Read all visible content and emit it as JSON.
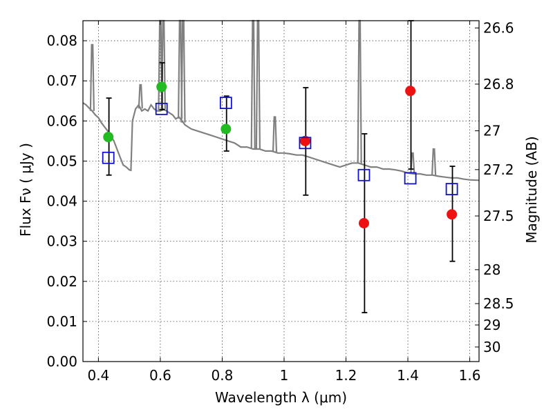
{
  "chart_data": {
    "type": "scatter",
    "xlabel": "Wavelength  λ (μm)",
    "ylabel": "Flux  Fν  ( μJy )",
    "ylabel_right": "Magnitude (AB)",
    "xlim": [
      0.35,
      1.63
    ],
    "ylim": [
      0.0,
      0.085
    ],
    "x_ticks": [
      0.4,
      0.6,
      0.8,
      1.0,
      1.2,
      1.4,
      1.6
    ],
    "x_tick_labels": [
      "0.4",
      "0.6",
      "0.8",
      "1",
      "1.2",
      "1.4",
      "1.6"
    ],
    "y_ticks": [
      0.0,
      0.01,
      0.02,
      0.03,
      0.04,
      0.05,
      0.06,
      0.07,
      0.08
    ],
    "y_tick_labels": [
      "0.00",
      "0.01",
      "0.02",
      "0.03",
      "0.04",
      "0.05",
      "0.06",
      "0.07",
      "0.08"
    ],
    "right_ticks": [
      {
        "label": "26.6",
        "mag": 26.6
      },
      {
        "label": "26.8",
        "mag": 26.8
      },
      {
        "label": "27",
        "mag": 27.0
      },
      {
        "label": "27.2",
        "mag": 27.2
      },
      {
        "label": "27.5",
        "mag": 27.5
      },
      {
        "label": "28",
        "mag": 28.0
      },
      {
        "label": "28.5",
        "mag": 28.5
      },
      {
        "label": "29",
        "mag": 29.0
      },
      {
        "label": "30",
        "mag": 30.0
      }
    ],
    "grid": true,
    "series": [
      {
        "kind": "line",
        "color": "#808080",
        "points": [
          [
            0.35,
            0.0645
          ],
          [
            0.36,
            0.064
          ],
          [
            0.37,
            0.0632
          ],
          [
            0.38,
            0.0625
          ],
          [
            0.39,
            0.0615
          ],
          [
            0.4,
            0.0608
          ],
          [
            0.41,
            0.0595
          ],
          [
            0.42,
            0.0585
          ],
          [
            0.43,
            0.0575
          ],
          [
            0.44,
            0.0562
          ],
          [
            0.45,
            0.055
          ],
          [
            0.46,
            0.053
          ],
          [
            0.47,
            0.051
          ],
          [
            0.48,
            0.049
          ],
          [
            0.49,
            0.0485
          ],
          [
            0.5,
            0.0478
          ],
          [
            0.505,
            0.0477
          ],
          [
            0.51,
            0.06
          ],
          [
            0.52,
            0.063
          ],
          [
            0.53,
            0.064
          ],
          [
            0.54,
            0.0625
          ],
          [
            0.55,
            0.063
          ],
          [
            0.56,
            0.0625
          ],
          [
            0.57,
            0.064
          ],
          [
            0.58,
            0.063
          ],
          [
            0.59,
            0.0625
          ],
          [
            0.6,
            0.0625
          ],
          [
            0.61,
            0.063
          ],
          [
            0.62,
            0.0625
          ],
          [
            0.63,
            0.062
          ],
          [
            0.64,
            0.0615
          ],
          [
            0.65,
            0.0605
          ],
          [
            0.66,
            0.061
          ],
          [
            0.67,
            0.06
          ],
          [
            0.68,
            0.059
          ],
          [
            0.69,
            0.0585
          ],
          [
            0.7,
            0.058
          ],
          [
            0.72,
            0.0575
          ],
          [
            0.74,
            0.057
          ],
          [
            0.76,
            0.0565
          ],
          [
            0.78,
            0.056
          ],
          [
            0.8,
            0.0555
          ],
          [
            0.82,
            0.055
          ],
          [
            0.84,
            0.0545
          ],
          [
            0.86,
            0.0535
          ],
          [
            0.88,
            0.0535
          ],
          [
            0.9,
            0.053
          ],
          [
            0.92,
            0.053
          ],
          [
            0.94,
            0.0525
          ],
          [
            0.96,
            0.0525
          ],
          [
            0.98,
            0.052
          ],
          [
            1.0,
            0.052
          ],
          [
            1.02,
            0.0518
          ],
          [
            1.04,
            0.0515
          ],
          [
            1.06,
            0.0515
          ],
          [
            1.08,
            0.051
          ],
          [
            1.1,
            0.0505
          ],
          [
            1.12,
            0.05
          ],
          [
            1.14,
            0.0495
          ],
          [
            1.16,
            0.049
          ],
          [
            1.18,
            0.0485
          ],
          [
            1.2,
            0.049
          ],
          [
            1.22,
            0.0495
          ],
          [
            1.24,
            0.0495
          ],
          [
            1.26,
            0.049
          ],
          [
            1.28,
            0.0485
          ],
          [
            1.3,
            0.0485
          ],
          [
            1.32,
            0.048
          ],
          [
            1.34,
            0.048
          ],
          [
            1.36,
            0.0478
          ],
          [
            1.38,
            0.0475
          ],
          [
            1.4,
            0.047
          ],
          [
            1.42,
            0.0468
          ],
          [
            1.44,
            0.0468
          ],
          [
            1.46,
            0.0465
          ],
          [
            1.48,
            0.0465
          ],
          [
            1.5,
            0.0462
          ],
          [
            1.52,
            0.046
          ],
          [
            1.54,
            0.0458
          ],
          [
            1.56,
            0.0458
          ],
          [
            1.58,
            0.0455
          ],
          [
            1.6,
            0.0453
          ],
          [
            1.63,
            0.0452
          ]
        ]
      },
      {
        "kind": "line-peaks",
        "color": "#808080",
        "peaks": [
          [
            0.38,
            0.079
          ],
          [
            0.536,
            0.069
          ],
          [
            0.6,
            0.085
          ],
          [
            0.61,
            0.085
          ],
          [
            0.664,
            0.085
          ],
          [
            0.674,
            0.085
          ],
          [
            0.9,
            0.085
          ],
          [
            0.916,
            0.085
          ],
          [
            0.97,
            0.061
          ],
          [
            1.244,
            0.085
          ],
          [
            1.415,
            0.052
          ],
          [
            1.484,
            0.053
          ]
        ]
      },
      {
        "kind": "circles",
        "color": "#22bb22",
        "points": [
          [
            0.432,
            0.056
          ],
          [
            0.604,
            0.0685
          ],
          [
            0.812,
            0.058
          ]
        ]
      },
      {
        "kind": "circles",
        "color": "#ee1111",
        "points": [
          [
            1.068,
            0.055
          ],
          [
            1.258,
            0.0345
          ],
          [
            1.408,
            0.0675
          ],
          [
            1.542,
            0.0367
          ]
        ]
      },
      {
        "kind": "squares",
        "color": "#1111cc",
        "points": [
          [
            0.432,
            0.0508
          ],
          [
            0.604,
            0.063
          ],
          [
            0.812,
            0.0645
          ],
          [
            1.068,
            0.0545
          ],
          [
            1.258,
            0.0465
          ],
          [
            1.408,
            0.0457
          ],
          [
            1.542,
            0.043
          ]
        ]
      },
      {
        "kind": "errorbars",
        "color": "#000000",
        "bars": [
          [
            0.434,
            0.0465,
            0.0657
          ],
          [
            0.606,
            0.0628,
            0.0745
          ],
          [
            0.814,
            0.0525,
            0.0662
          ],
          [
            1.07,
            0.0415,
            0.0683
          ],
          [
            1.26,
            0.0122,
            0.0568
          ],
          [
            1.41,
            0.048,
            0.085
          ],
          [
            1.544,
            0.025,
            0.0487
          ]
        ]
      }
    ]
  }
}
